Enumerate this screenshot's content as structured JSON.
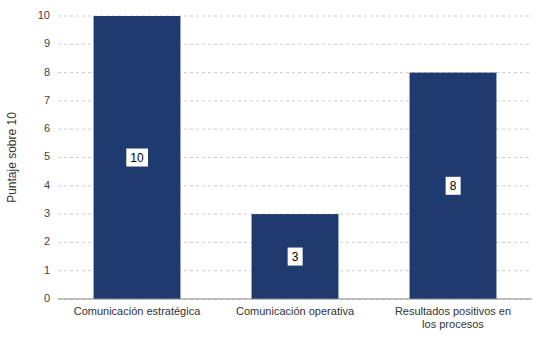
{
  "chart_data": {
    "type": "bar",
    "categories": [
      "Comunicación estratégica",
      "Comunicación operativa",
      "Resultados positivos en\nlos procesos"
    ],
    "values": [
      10,
      3,
      8
    ],
    "color": "#1E3A6E",
    "ylabel": "Puntaje sobre 10",
    "ylim": [
      0,
      10
    ],
    "yticks": [
      0,
      1,
      2,
      3,
      4,
      5,
      6,
      7,
      8,
      9,
      10
    ],
    "grid": true,
    "data_labels": true
  }
}
